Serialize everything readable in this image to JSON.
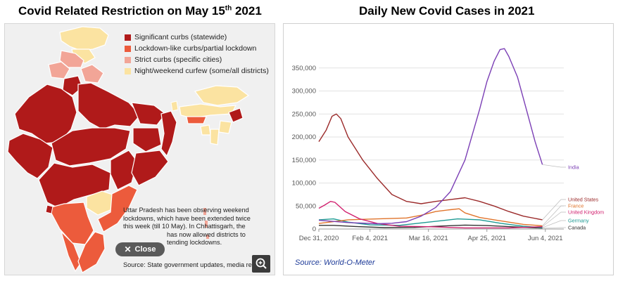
{
  "left_panel": {
    "title_main": "Covid Related Restriction on May 15",
    "title_sup": "th",
    "title_year": " 2021",
    "legend": [
      {
        "label": "Significant curbs (statewide)",
        "color": "#b01a1a"
      },
      {
        "label": "Lockdown-like curbs/partial lockdown",
        "color": "#ec5b3c"
      },
      {
        "label": "Strict curbs (specific cities)",
        "color": "#f2a597"
      },
      {
        "label": "Night/weekend curfew (some/all districts)",
        "color": "#fbe3a1"
      }
    ],
    "note_line1": "Uttar Pradesh has been observing weekend",
    "note_line2": "lockdowns, which have been extended twice",
    "note_line3": "this week (till 10 May). In Chhattisgarh, the",
    "note_line4": "has now allowed districts to",
    "note_line5": "tending lockdowns.",
    "close_label": "Close",
    "source": "Source: State government updates, media reports"
  },
  "right_panel": {
    "title": "Daily New Covid Cases in 2021",
    "source": "Source: World-O-Meter"
  },
  "chart_data": {
    "type": "line",
    "title": "Daily New Covid Cases in 2021",
    "x_tick_labels": [
      "Dec 31, 2020",
      "Feb 4, 2021",
      "Mar 16, 2021",
      "Apr 25, 2021",
      "Jun 4, 2021"
    ],
    "x_tick_days": [
      0,
      35,
      75,
      115,
      155
    ],
    "y_tick_labels": [
      "0",
      "50,000",
      "100,000",
      "150,000",
      "200,000",
      "250,000",
      "300,000",
      "350,000"
    ],
    "y_tick_values": [
      0,
      50000,
      100000,
      150000,
      200000,
      250000,
      300000,
      350000
    ],
    "ylim": [
      0,
      400000
    ],
    "xlim_days": [
      0,
      158
    ],
    "grid": true,
    "series": [
      {
        "name": "India",
        "color": "#7b3fb5",
        "points": [
          [
            0,
            19000
          ],
          [
            20,
            14000
          ],
          [
            40,
            11500
          ],
          [
            50,
            12500
          ],
          [
            60,
            16000
          ],
          [
            70,
            28000
          ],
          [
            80,
            47000
          ],
          [
            90,
            81000
          ],
          [
            100,
            150000
          ],
          [
            110,
            260000
          ],
          [
            115,
            320000
          ],
          [
            120,
            365000
          ],
          [
            124,
            390000
          ],
          [
            127,
            392000
          ],
          [
            130,
            375000
          ],
          [
            136,
            330000
          ],
          [
            142,
            260000
          ],
          [
            148,
            190000
          ],
          [
            153,
            140000
          ]
        ]
      },
      {
        "name": "United States",
        "color": "#9b2a2a",
        "points": [
          [
            0,
            190000
          ],
          [
            5,
            215000
          ],
          [
            9,
            245000
          ],
          [
            12,
            250000
          ],
          [
            15,
            240000
          ],
          [
            20,
            200000
          ],
          [
            30,
            150000
          ],
          [
            40,
            110000
          ],
          [
            50,
            75000
          ],
          [
            60,
            60000
          ],
          [
            70,
            55000
          ],
          [
            80,
            60000
          ],
          [
            90,
            64000
          ],
          [
            100,
            68000
          ],
          [
            110,
            60000
          ],
          [
            120,
            50000
          ],
          [
            130,
            38000
          ],
          [
            140,
            28000
          ],
          [
            153,
            20000
          ]
        ]
      },
      {
        "name": "France",
        "color": "#e0742c",
        "points": [
          [
            0,
            12000
          ],
          [
            20,
            20000
          ],
          [
            40,
            22000
          ],
          [
            60,
            24000
          ],
          [
            70,
            30000
          ],
          [
            80,
            38000
          ],
          [
            90,
            42000
          ],
          [
            96,
            44000
          ],
          [
            100,
            35000
          ],
          [
            110,
            25000
          ],
          [
            120,
            20000
          ],
          [
            130,
            15000
          ],
          [
            140,
            10000
          ],
          [
            153,
            7000
          ]
        ]
      },
      {
        "name": "United Kingdom",
        "color": "#d1216f",
        "points": [
          [
            0,
            45000
          ],
          [
            4,
            52000
          ],
          [
            8,
            60000
          ],
          [
            11,
            58000
          ],
          [
            18,
            38000
          ],
          [
            28,
            22000
          ],
          [
            40,
            12000
          ],
          [
            55,
            6000
          ],
          [
            75,
            5000
          ],
          [
            100,
            2500
          ],
          [
            130,
            2500
          ],
          [
            153,
            5000
          ]
        ]
      },
      {
        "name": "Germany",
        "color": "#1e9a93",
        "points": [
          [
            0,
            20000
          ],
          [
            10,
            22000
          ],
          [
            20,
            15000
          ],
          [
            35,
            9000
          ],
          [
            55,
            8000
          ],
          [
            75,
            15000
          ],
          [
            95,
            22000
          ],
          [
            110,
            20000
          ],
          [
            125,
            12000
          ],
          [
            140,
            6000
          ],
          [
            153,
            3000
          ]
        ]
      },
      {
        "name": "Canada",
        "color": "#333333",
        "points": [
          [
            0,
            8000
          ],
          [
            10,
            8000
          ],
          [
            25,
            5500
          ],
          [
            45,
            3000
          ],
          [
            65,
            3500
          ],
          [
            85,
            6500
          ],
          [
            100,
            8500
          ],
          [
            115,
            7500
          ],
          [
            135,
            4500
          ],
          [
            153,
            2000
          ]
        ]
      }
    ]
  }
}
